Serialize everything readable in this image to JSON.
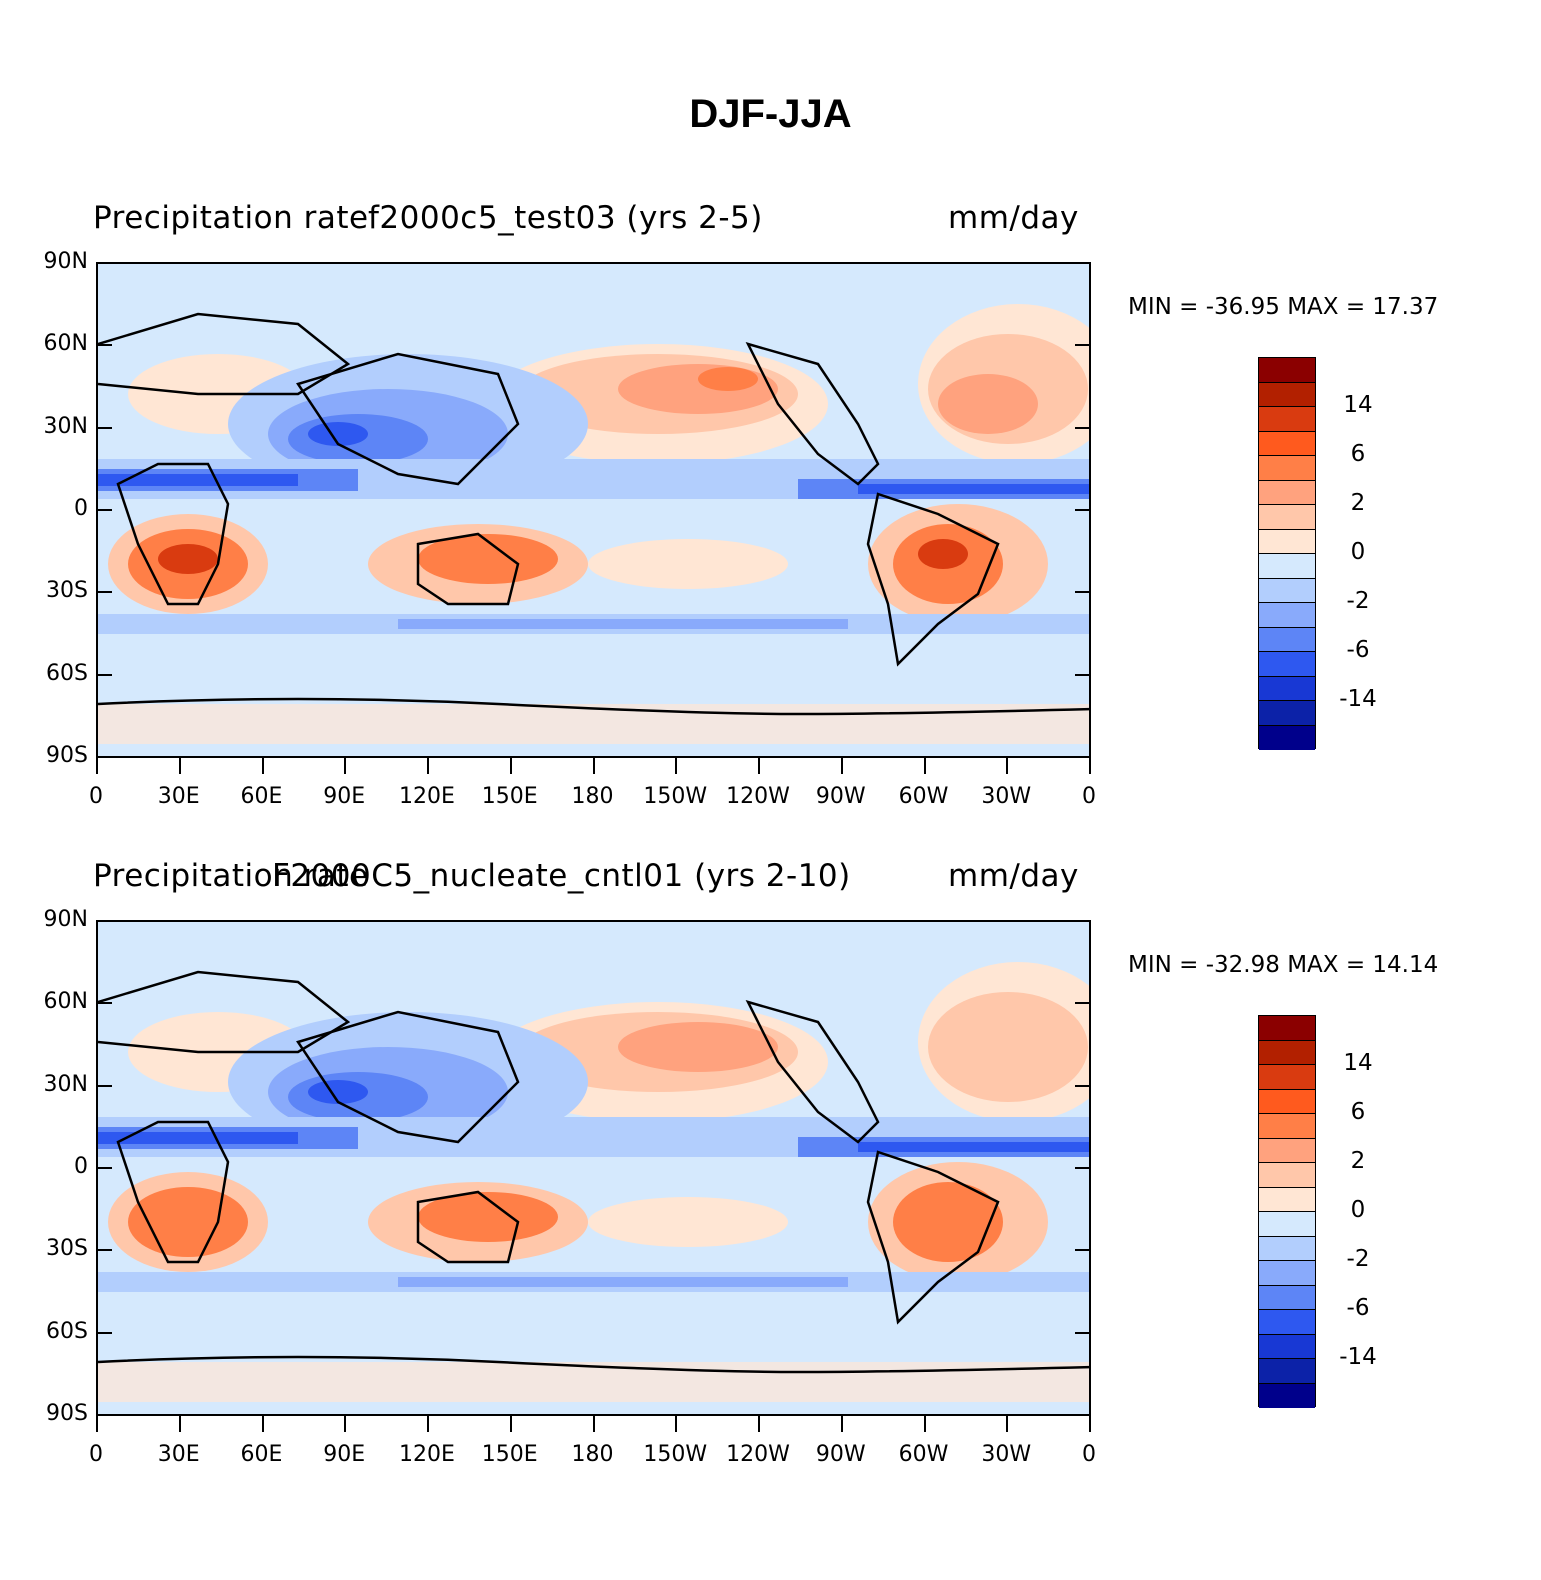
{
  "figure": {
    "title": "DJF-JJA"
  },
  "chart_data": [
    {
      "type": "heatmap",
      "variable_label": "Precipitation rate",
      "case_label": "f2000c5_test03 (yrs 2-5)",
      "units_label": "mm/day",
      "min_label": "MIN = -36.95",
      "max_label": "MAX =   17.37",
      "min": -36.95,
      "max": 17.37,
      "lat_ticks": [
        "90N",
        "60N",
        "30N",
        "0",
        "30S",
        "60S",
        "90S"
      ],
      "lon_ticks": [
        "0",
        "30E",
        "60E",
        "90E",
        "120E",
        "150E",
        "180",
        "150W",
        "120W",
        "90W",
        "60W",
        "30W",
        "0"
      ]
    },
    {
      "type": "heatmap",
      "variable_label": "Precipitation rate",
      "case_label": "F2000C5_nucleate_cntl01 (yrs 2-10)",
      "units_label": "mm/day",
      "min_label": "MIN = -32.98",
      "max_label": "MAX =   14.14",
      "min": -32.98,
      "max": 14.14,
      "lat_ticks": [
        "90N",
        "60N",
        "30N",
        "0",
        "30S",
        "60S",
        "90S"
      ],
      "lon_ticks": [
        "0",
        "30E",
        "60E",
        "90E",
        "120E",
        "150E",
        "180",
        "150W",
        "120W",
        "90W",
        "60W",
        "30W",
        "0"
      ]
    }
  ],
  "legend": {
    "colors": [
      "#8b0000",
      "#b22000",
      "#d93b10",
      "#ff5a1e",
      "#ff7f47",
      "#ffa27e",
      "#ffc7aa",
      "#ffe6d4",
      "#d5e9fd",
      "#b2cefd",
      "#89aafb",
      "#5d85f6",
      "#2e58f0",
      "#1838d4",
      "#0c22a8",
      "#00008b"
    ],
    "labels": [
      "14",
      "6",
      "2",
      "0",
      "-2",
      "-6",
      "-14"
    ]
  }
}
